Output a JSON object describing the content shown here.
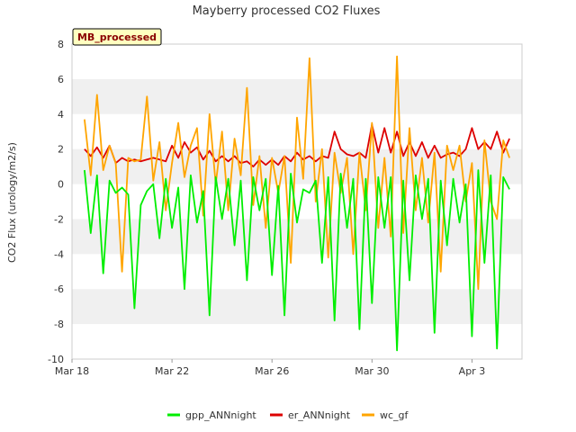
{
  "chart_data": {
    "type": "line",
    "title": "Mayberry processed CO2 Fluxes",
    "xlabel": "",
    "ylabel": "CO2 Flux (urology/m2/s)",
    "ylim": [
      -10,
      8
    ],
    "yticks": [
      8,
      6,
      4,
      2,
      0,
      -2,
      -4,
      -6,
      -8,
      -10
    ],
    "xlim": [
      "2021-03-18",
      "2021-04-05"
    ],
    "xticks": [
      {
        "date": "2021-03-18",
        "label": "Mar 18"
      },
      {
        "date": "2021-03-22",
        "label": "Mar 22"
      },
      {
        "date": "2021-03-26",
        "label": "Mar 26"
      },
      {
        "date": "2021-03-30",
        "label": "Mar 30"
      },
      {
        "date": "2021-04-03",
        "label": "Apr 3"
      }
    ],
    "site_badge": "MB_processed",
    "grid": "horizontal alternating bands",
    "legend_position": "bottom",
    "colors": {
      "gpp": "#00ee00",
      "er": "#dd0000",
      "wc": "#ffa500",
      "band": "#f0f0f0",
      "badge_bg": "#ffffc0"
    },
    "series": [
      {
        "name": "gpp_ANNnight",
        "color": "#00ee00",
        "x": [
          "2021-03-18T12:00",
          "2021-03-18T18:00",
          "2021-03-19T00:00",
          "2021-03-19T06:00",
          "2021-03-19T12:00",
          "2021-03-19T18:00",
          "2021-03-20T00:00",
          "2021-03-20T06:00",
          "2021-03-20T12:00",
          "2021-03-20T18:00",
          "2021-03-21T00:00",
          "2021-03-21T06:00",
          "2021-03-21T12:00",
          "2021-03-21T18:00",
          "2021-03-22T00:00",
          "2021-03-22T06:00",
          "2021-03-22T12:00",
          "2021-03-22T18:00",
          "2021-03-23T00:00",
          "2021-03-23T06:00",
          "2021-03-23T12:00",
          "2021-03-23T18:00",
          "2021-03-24T00:00",
          "2021-03-24T06:00",
          "2021-03-24T12:00",
          "2021-03-24T18:00",
          "2021-03-25T00:00",
          "2021-03-25T06:00",
          "2021-03-25T12:00",
          "2021-03-25T18:00",
          "2021-03-26T00:00",
          "2021-03-26T06:00",
          "2021-03-26T12:00",
          "2021-03-26T18:00",
          "2021-03-27T00:00",
          "2021-03-27T06:00",
          "2021-03-27T12:00",
          "2021-03-27T18:00",
          "2021-03-28T00:00",
          "2021-03-28T06:00",
          "2021-03-28T12:00",
          "2021-03-28T18:00",
          "2021-03-29T00:00",
          "2021-03-29T06:00",
          "2021-03-29T12:00",
          "2021-03-29T18:00",
          "2021-03-30T00:00",
          "2021-03-30T06:00",
          "2021-03-30T12:00",
          "2021-03-30T18:00",
          "2021-03-31T00:00",
          "2021-03-31T06:00",
          "2021-03-31T12:00",
          "2021-03-31T18:00",
          "2021-04-01T00:00",
          "2021-04-01T06:00",
          "2021-04-01T12:00",
          "2021-04-01T18:00",
          "2021-04-02T00:00",
          "2021-04-02T06:00",
          "2021-04-02T12:00",
          "2021-04-02T18:00",
          "2021-04-03T00:00",
          "2021-04-03T06:00",
          "2021-04-03T12:00",
          "2021-04-03T18:00",
          "2021-04-04T00:00",
          "2021-04-04T06:00",
          "2021-04-04T12:00"
        ],
        "y": [
          0.8,
          -2.8,
          0.5,
          -5.1,
          0.2,
          -0.5,
          -0.2,
          -0.6,
          -7.1,
          -1.2,
          -0.4,
          0.0,
          -3.1,
          0.3,
          -2.5,
          -0.2,
          -6.0,
          0.5,
          -2.2,
          -0.4,
          -7.5,
          0.4,
          -2.0,
          0.3,
          -3.5,
          0.2,
          -5.5,
          0.4,
          -1.5,
          0.3,
          -5.2,
          -0.1,
          -7.5,
          0.6,
          -2.2,
          -0.3,
          -0.5,
          0.2,
          -4.5,
          0.4,
          -7.8,
          0.6,
          -2.5,
          0.3,
          -8.3,
          0.3,
          -6.8,
          0.4,
          -2.5,
          0.4,
          -9.5,
          0.2,
          -5.5,
          0.5,
          -2.0,
          0.3,
          -8.5,
          0.2,
          -3.5,
          0.3,
          -2.2,
          0.0,
          -8.7,
          0.8,
          -4.5,
          0.5,
          -9.4,
          0.4,
          -0.3
        ]
      },
      {
        "name": "er_ANNnight",
        "color": "#dd0000",
        "x": [
          "2021-03-18T12:00",
          "2021-03-18T18:00",
          "2021-03-19T00:00",
          "2021-03-19T06:00",
          "2021-03-19T12:00",
          "2021-03-19T18:00",
          "2021-03-20T00:00",
          "2021-03-20T06:00",
          "2021-03-20T12:00",
          "2021-03-20T18:00",
          "2021-03-21T00:00",
          "2021-03-21T06:00",
          "2021-03-21T12:00",
          "2021-03-21T18:00",
          "2021-03-22T00:00",
          "2021-03-22T06:00",
          "2021-03-22T12:00",
          "2021-03-22T18:00",
          "2021-03-23T00:00",
          "2021-03-23T06:00",
          "2021-03-23T12:00",
          "2021-03-23T18:00",
          "2021-03-24T00:00",
          "2021-03-24T06:00",
          "2021-03-24T12:00",
          "2021-03-24T18:00",
          "2021-03-25T00:00",
          "2021-03-25T06:00",
          "2021-03-25T12:00",
          "2021-03-25T18:00",
          "2021-03-26T00:00",
          "2021-03-26T06:00",
          "2021-03-26T12:00",
          "2021-03-26T18:00",
          "2021-03-27T00:00",
          "2021-03-27T06:00",
          "2021-03-27T12:00",
          "2021-03-27T18:00",
          "2021-03-28T00:00",
          "2021-03-28T06:00",
          "2021-03-28T12:00",
          "2021-03-28T18:00",
          "2021-03-29T00:00",
          "2021-03-29T06:00",
          "2021-03-29T12:00",
          "2021-03-29T18:00",
          "2021-03-30T00:00",
          "2021-03-30T06:00",
          "2021-03-30T12:00",
          "2021-03-30T18:00",
          "2021-03-31T00:00",
          "2021-03-31T06:00",
          "2021-03-31T12:00",
          "2021-03-31T18:00",
          "2021-04-01T00:00",
          "2021-04-01T06:00",
          "2021-04-01T12:00",
          "2021-04-01T18:00",
          "2021-04-02T00:00",
          "2021-04-02T06:00",
          "2021-04-02T12:00",
          "2021-04-02T18:00",
          "2021-04-03T00:00",
          "2021-04-03T06:00",
          "2021-04-03T12:00",
          "2021-04-03T18:00",
          "2021-04-04T00:00",
          "2021-04-04T06:00",
          "2021-04-04T12:00"
        ],
        "y": [
          2.0,
          1.6,
          2.1,
          1.5,
          2.2,
          1.2,
          1.5,
          1.3,
          1.4,
          1.3,
          1.4,
          1.5,
          1.4,
          1.3,
          2.2,
          1.5,
          2.4,
          1.8,
          2.1,
          1.4,
          1.9,
          1.3,
          1.6,
          1.3,
          1.6,
          1.2,
          1.3,
          1.0,
          1.4,
          1.1,
          1.4,
          1.1,
          1.6,
          1.3,
          1.8,
          1.4,
          1.6,
          1.3,
          1.6,
          1.5,
          3.0,
          2.0,
          1.7,
          1.6,
          1.8,
          1.5,
          3.4,
          1.8,
          3.2,
          1.8,
          3.0,
          1.6,
          2.4,
          1.6,
          2.4,
          1.5,
          2.2,
          1.5,
          1.7,
          1.8,
          1.6,
          2.0,
          3.2,
          2.0,
          2.4,
          2.0,
          3.0,
          1.8,
          2.6
        ]
      },
      {
        "name": "wc_gf",
        "color": "#ffa500",
        "x": [
          "2021-03-18T12:00",
          "2021-03-18T18:00",
          "2021-03-19T00:00",
          "2021-03-19T06:00",
          "2021-03-19T12:00",
          "2021-03-19T18:00",
          "2021-03-20T00:00",
          "2021-03-20T06:00",
          "2021-03-20T12:00",
          "2021-03-20T18:00",
          "2021-03-21T00:00",
          "2021-03-21T06:00",
          "2021-03-21T12:00",
          "2021-03-21T18:00",
          "2021-03-22T00:00",
          "2021-03-22T06:00",
          "2021-03-22T12:00",
          "2021-03-22T18:00",
          "2021-03-23T00:00",
          "2021-03-23T06:00",
          "2021-03-23T12:00",
          "2021-03-23T18:00",
          "2021-03-24T00:00",
          "2021-03-24T06:00",
          "2021-03-24T12:00",
          "2021-03-24T18:00",
          "2021-03-25T00:00",
          "2021-03-25T06:00",
          "2021-03-25T12:00",
          "2021-03-25T18:00",
          "2021-03-26T00:00",
          "2021-03-26T06:00",
          "2021-03-26T12:00",
          "2021-03-26T18:00",
          "2021-03-27T00:00",
          "2021-03-27T06:00",
          "2021-03-27T12:00",
          "2021-03-27T18:00",
          "2021-03-28T00:00",
          "2021-03-28T06:00",
          "2021-03-28T12:00",
          "2021-03-28T18:00",
          "2021-03-29T00:00",
          "2021-03-29T06:00",
          "2021-03-29T12:00",
          "2021-03-29T18:00",
          "2021-03-30T00:00",
          "2021-03-30T06:00",
          "2021-03-30T12:00",
          "2021-03-30T18:00",
          "2021-03-31T00:00",
          "2021-03-31T06:00",
          "2021-03-31T12:00",
          "2021-03-31T18:00",
          "2021-04-01T00:00",
          "2021-04-01T06:00",
          "2021-04-01T12:00",
          "2021-04-01T18:00",
          "2021-04-02T00:00",
          "2021-04-02T06:00",
          "2021-04-02T12:00",
          "2021-04-02T18:00",
          "2021-04-03T00:00",
          "2021-04-03T06:00",
          "2021-04-03T12:00",
          "2021-04-03T18:00",
          "2021-04-04T00:00",
          "2021-04-04T06:00",
          "2021-04-04T12:00"
        ],
        "y": [
          3.7,
          0.5,
          5.1,
          0.8,
          2.2,
          1.2,
          -5.0,
          1.5,
          1.3,
          1.4,
          5.0,
          0.2,
          2.4,
          -1.5,
          1.2,
          3.5,
          0.4,
          2.2,
          3.2,
          -1.8,
          4.0,
          0.0,
          3.0,
          -1.5,
          2.6,
          0.5,
          5.5,
          -1.2,
          1.6,
          -2.5,
          1.5,
          -0.5,
          1.6,
          -4.5,
          3.8,
          0.3,
          7.2,
          -1.0,
          2.0,
          -4.2,
          1.8,
          -0.5,
          1.5,
          -4.0,
          1.8,
          -1.5,
          3.5,
          -2.5,
          1.5,
          -3.0,
          7.3,
          -2.8,
          3.2,
          -1.5,
          1.5,
          -2.2,
          1.8,
          -5.0,
          2.2,
          0.8,
          2.2,
          -1.0,
          1.2,
          -6.0,
          2.5,
          -1.0,
          -2.0,
          2.5,
          1.5
        ]
      }
    ]
  }
}
